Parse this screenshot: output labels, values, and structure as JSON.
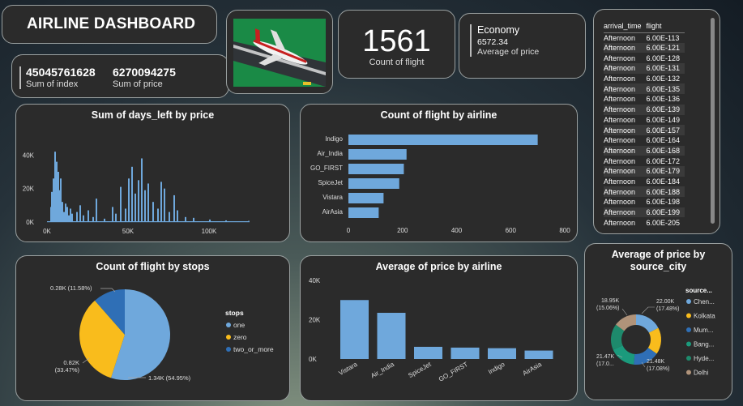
{
  "header": {
    "title": "AIRLINE DASHBOARD"
  },
  "kpis": {
    "sum_index_value": "45045761628",
    "sum_index_label": "Sum of index",
    "sum_price_value": "6270094275",
    "sum_price_label": "Sum of price",
    "count_value": "1561",
    "count_label": "Count of flight",
    "class_value": "Economy",
    "avg_price_value": "6572.34",
    "avg_price_label": "Average of price"
  },
  "table": {
    "headers": [
      "arrival_time",
      "flight"
    ],
    "rows": [
      [
        "Afternoon",
        "6.00E-113"
      ],
      [
        "Afternoon",
        "6.00E-121"
      ],
      [
        "Afternoon",
        "6.00E-128"
      ],
      [
        "Afternoon",
        "6.00E-131"
      ],
      [
        "Afternoon",
        "6.00E-132"
      ],
      [
        "Afternoon",
        "6.00E-135"
      ],
      [
        "Afternoon",
        "6.00E-136"
      ],
      [
        "Afternoon",
        "6.00E-139"
      ],
      [
        "Afternoon",
        "6.00E-149"
      ],
      [
        "Afternoon",
        "6.00E-157"
      ],
      [
        "Afternoon",
        "6.00E-164"
      ],
      [
        "Afternoon",
        "6.00E-168"
      ],
      [
        "Afternoon",
        "6.00E-172"
      ],
      [
        "Afternoon",
        "6.00E-179"
      ],
      [
        "Afternoon",
        "6.00E-184"
      ],
      [
        "Afternoon",
        "6.00E-188"
      ],
      [
        "Afternoon",
        "6.00E-198"
      ],
      [
        "Afternoon",
        "6.00E-199"
      ],
      [
        "Afternoon",
        "6.00E-205"
      ]
    ]
  },
  "colors": {
    "blue": "#6fa8dc",
    "yellow": "#f9bc1c",
    "darkblue": "#2f6fb6",
    "teal": "#1b9a7c",
    "teal2": "#1e8a6c",
    "tan": "#b0937a"
  },
  "chart_data": [
    {
      "id": "days_left_by_price",
      "type": "bar",
      "title": "Sum of days_left by price",
      "x_ticks": [
        "0K",
        "50K",
        "100K"
      ],
      "y_ticks": [
        "0K",
        "20K",
        "40K"
      ],
      "xlim": [
        0,
        125000
      ],
      "ylim": [
        0,
        45000
      ],
      "x": [
        2000,
        2500,
        3000,
        3500,
        4000,
        4500,
        5000,
        5500,
        6000,
        6500,
        7000,
        7500,
        8000,
        9000,
        10000,
        11000,
        12000,
        13000,
        14000,
        15000,
        18000,
        20000,
        22000,
        25000,
        28000,
        30000,
        35000,
        40000,
        42000,
        45000,
        48000,
        50000,
        52000,
        54000,
        56000,
        58000,
        60000,
        62000,
        65000,
        68000,
        70000,
        72000,
        75000,
        78000,
        80000,
        85000,
        90000,
        100000,
        110000,
        124000
      ],
      "values": [
        9000,
        18000,
        12000,
        26000,
        20000,
        42000,
        15000,
        36000,
        22000,
        30000,
        14000,
        19000,
        26000,
        12000,
        6000,
        11000,
        9000,
        4000,
        8000,
        5000,
        6000,
        10000,
        4000,
        7000,
        3000,
        14000,
        2000,
        9000,
        5000,
        21000,
        8000,
        26000,
        33000,
        17000,
        25000,
        38000,
        19000,
        23000,
        12000,
        8000,
        24000,
        20000,
        6000,
        16000,
        7000,
        3000,
        2500,
        1500,
        1000,
        700
      ]
    },
    {
      "id": "flight_by_airline",
      "type": "bar-horizontal",
      "title": "Count of flight by airline",
      "categories": [
        "Indigo",
        "Air_India",
        "GO_FIRST",
        "SpiceJet",
        "Vistara",
        "AirAsia"
      ],
      "values": [
        700,
        215,
        205,
        188,
        130,
        112
      ],
      "x_ticks": [
        "0",
        "200",
        "400",
        "600",
        "800"
      ],
      "xlim": [
        0,
        800
      ]
    },
    {
      "id": "flight_by_stops",
      "type": "pie",
      "title": "Count of flight by stops",
      "legend_title": "stops",
      "slices": [
        {
          "name": "one",
          "value": 1340,
          "label": "1.34K (54.95%)"
        },
        {
          "name": "zero",
          "value": 820,
          "label": "0.82K\n(33.47%)"
        },
        {
          "name": "two_or_more",
          "value": 280,
          "label": "0.28K (11.58%)"
        }
      ]
    },
    {
      "id": "avg_price_by_airline",
      "type": "bar",
      "title": "Average of price by airline",
      "categories": [
        "Vistara",
        "Air_India",
        "SpiceJet",
        "GO_FIRST",
        "Indigo",
        "AirAsia"
      ],
      "values": [
        30000,
        23500,
        6200,
        5800,
        5500,
        4300
      ],
      "y_ticks": [
        "0K",
        "20K",
        "40K"
      ],
      "ylim": [
        0,
        40000
      ]
    },
    {
      "id": "avg_price_by_source_city",
      "type": "donut",
      "title": "Average of price by source_city",
      "legend_title": "source...",
      "slices": [
        {
          "name": "Chen...",
          "value": 22.0
        },
        {
          "name": "Kolkata",
          "value": 21.9
        },
        {
          "name": "Mum...",
          "value": 21.48
        },
        {
          "name": "Bang...",
          "value": 21.47
        },
        {
          "name": "Hyde...",
          "value": 21.2
        },
        {
          "name": "Delhi",
          "value": 18.95
        }
      ],
      "labels": [
        "22.00K",
        "(17.48%)",
        "21.48K",
        "(17.08%)",
        "21.47K",
        "(17.0...",
        "18.95K",
        "(15.06%)"
      ]
    }
  ]
}
